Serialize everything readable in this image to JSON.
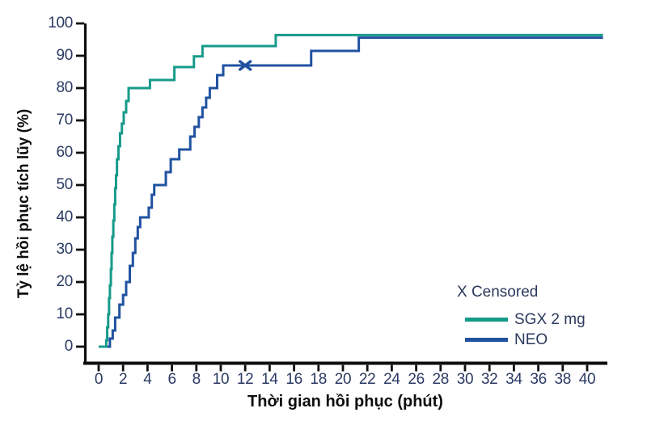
{
  "legend": {
    "censored_label": "X Censored",
    "items": [
      {
        "label": "SGX 2 mg",
        "color": "#169a8a"
      },
      {
        "label": "NEO",
        "color": "#2052a0"
      }
    ]
  },
  "axis": {
    "line_color": "#0d0d0d",
    "tick_label_color": "#2b3a64"
  },
  "chart_data": {
    "type": "line",
    "subtype": "step-survival",
    "title": "",
    "xlabel": "Thời gian hồi phục (phút)",
    "ylabel": "Tỷ lệ hồi phục tích lũy (%)",
    "xlim": [
      0,
      41.5
    ],
    "ylim": [
      0,
      100
    ],
    "xticks": [
      0,
      2,
      4,
      6,
      8,
      10,
      12,
      14,
      16,
      18,
      20,
      22,
      24,
      26,
      28,
      30,
      32,
      34,
      36,
      38,
      40
    ],
    "yticks": [
      0,
      10,
      20,
      30,
      40,
      50,
      60,
      70,
      80,
      90,
      100
    ],
    "grid": false,
    "legend_position": "lower-right",
    "series": [
      {
        "name": "SGX 2 mg",
        "color": "#169a8a",
        "end_x": 41.3,
        "points": [
          [
            0.0,
            0
          ],
          [
            0.62,
            2
          ],
          [
            0.7,
            6
          ],
          [
            0.78,
            10
          ],
          [
            0.85,
            15
          ],
          [
            0.92,
            19
          ],
          [
            1.0,
            24
          ],
          [
            1.06,
            29
          ],
          [
            1.12,
            34
          ],
          [
            1.2,
            39
          ],
          [
            1.28,
            44
          ],
          [
            1.35,
            49
          ],
          [
            1.42,
            53
          ],
          [
            1.5,
            58
          ],
          [
            1.62,
            62
          ],
          [
            1.75,
            66
          ],
          [
            1.9,
            69
          ],
          [
            2.05,
            72.5
          ],
          [
            2.25,
            76
          ],
          [
            2.45,
            80
          ],
          [
            4.2,
            82.5
          ],
          [
            6.2,
            86.5
          ],
          [
            7.8,
            89.8
          ],
          [
            8.5,
            93
          ],
          [
            14.5,
            96.4
          ]
        ],
        "censored_points": []
      },
      {
        "name": "NEO",
        "color": "#2052a0",
        "end_x": 41.3,
        "points": [
          [
            0.45,
            0
          ],
          [
            0.92,
            2.5
          ],
          [
            1.15,
            5
          ],
          [
            1.35,
            9
          ],
          [
            1.7,
            13
          ],
          [
            2.0,
            16
          ],
          [
            2.25,
            20
          ],
          [
            2.55,
            25
          ],
          [
            2.8,
            29
          ],
          [
            3.0,
            33.5
          ],
          [
            3.2,
            37
          ],
          [
            3.4,
            40
          ],
          [
            4.1,
            43
          ],
          [
            4.35,
            47
          ],
          [
            4.55,
            50
          ],
          [
            5.5,
            54
          ],
          [
            5.9,
            58
          ],
          [
            6.6,
            61
          ],
          [
            7.5,
            65
          ],
          [
            7.85,
            68
          ],
          [
            8.2,
            71
          ],
          [
            8.5,
            74
          ],
          [
            8.8,
            77
          ],
          [
            9.1,
            80
          ],
          [
            9.7,
            84
          ],
          [
            10.2,
            87
          ],
          [
            17.4,
            91.5
          ],
          [
            21.3,
            95.6
          ]
        ],
        "censored_points": [
          [
            12.0,
            87
          ]
        ]
      }
    ]
  }
}
